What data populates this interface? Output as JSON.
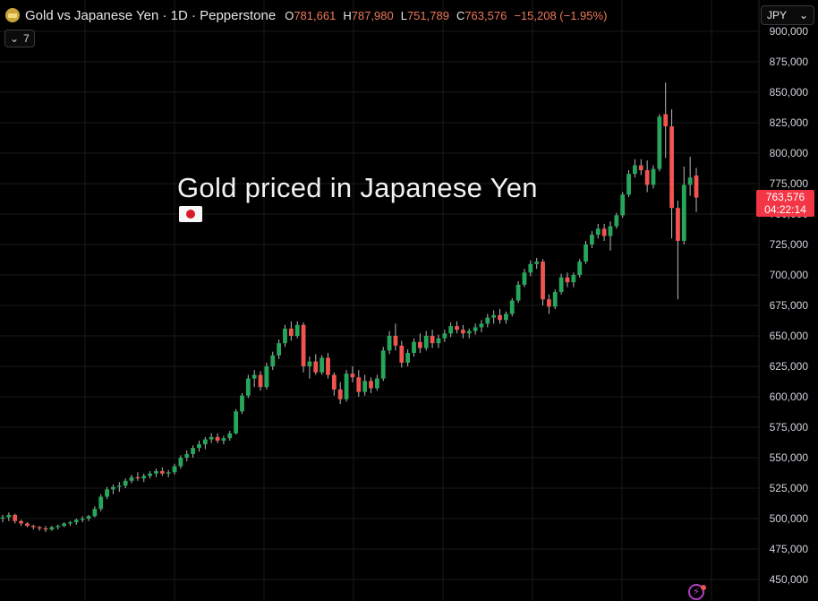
{
  "header": {
    "title": "Gold vs Japanese Yen · 1D · Pepperstone",
    "open_label": "O",
    "open": "781,661",
    "high_label": "H",
    "high": "787,980",
    "low_label": "L",
    "low": "751,789",
    "close_label": "C",
    "close": "763,576",
    "change": "−15,208 (−1.95%)"
  },
  "indicator_toggle": {
    "count": "7"
  },
  "currency_select": {
    "value": "JPY"
  },
  "annotation": {
    "text": "Gold priced in Japanese Yen",
    "flag": "japan-flag"
  },
  "price_tag": {
    "price": "763,576",
    "countdown": "04:22:14"
  },
  "colors": {
    "up": "#26a65b",
    "down": "#f0544f",
    "background": "#000000",
    "grid": "#1a1a1a",
    "tag": "#f23645"
  },
  "chart_data": {
    "type": "candlestick",
    "title": "",
    "xlabel": "",
    "ylabel": "",
    "ylim": [
      445000,
      905000
    ],
    "y_ticks": [
      "450,000",
      "475,000",
      "500,000",
      "525,000",
      "550,000",
      "575,000",
      "600,000",
      "625,000",
      "650,000",
      "675,000",
      "700,000",
      "725,000",
      "750,000",
      "775,000",
      "800,000",
      "825,000",
      "850,000",
      "875,000",
      "900,000"
    ],
    "y_tick_values": [
      450000,
      475000,
      500000,
      525000,
      550000,
      575000,
      600000,
      625000,
      650000,
      675000,
      700000,
      725000,
      750000,
      775000,
      800000,
      825000,
      850000,
      875000,
      900000
    ],
    "grid": true,
    "candles": [
      [
        500000,
        503000,
        497000,
        501000
      ],
      [
        501000,
        505000,
        498000,
        503000
      ],
      [
        503000,
        504000,
        496000,
        498000
      ],
      [
        498000,
        499000,
        494000,
        496000
      ],
      [
        496000,
        497000,
        493000,
        494000
      ],
      [
        494000,
        495000,
        491000,
        493000
      ],
      [
        493000,
        494000,
        490000,
        492000
      ],
      [
        492000,
        494000,
        489000,
        491000
      ],
      [
        491000,
        494000,
        490000,
        493000
      ],
      [
        493000,
        495000,
        491000,
        494000
      ],
      [
        494000,
        497000,
        493000,
        496000
      ],
      [
        496000,
        498000,
        494000,
        497000
      ],
      [
        497000,
        500000,
        495000,
        499000
      ],
      [
        499000,
        502000,
        497000,
        500000
      ],
      [
        500000,
        503000,
        498000,
        502000
      ],
      [
        502000,
        510000,
        501000,
        508000
      ],
      [
        508000,
        520000,
        506000,
        518000
      ],
      [
        518000,
        526000,
        516000,
        524000
      ],
      [
        524000,
        528000,
        520000,
        526000
      ],
      [
        526000,
        530000,
        522000,
        527000
      ],
      [
        527000,
        533000,
        525000,
        531000
      ],
      [
        531000,
        536000,
        529000,
        534000
      ],
      [
        534000,
        538000,
        531000,
        533000
      ],
      [
        533000,
        537000,
        530000,
        535000
      ],
      [
        535000,
        539000,
        533000,
        537000
      ],
      [
        537000,
        541000,
        534000,
        539000
      ],
      [
        539000,
        542000,
        535000,
        537000
      ],
      [
        537000,
        540000,
        534000,
        538000
      ],
      [
        538000,
        545000,
        536000,
        543000
      ],
      [
        543000,
        552000,
        541000,
        550000
      ],
      [
        550000,
        556000,
        547000,
        553000
      ],
      [
        553000,
        560000,
        550000,
        558000
      ],
      [
        558000,
        564000,
        555000,
        561000
      ],
      [
        561000,
        567000,
        557000,
        565000
      ],
      [
        565000,
        570000,
        562000,
        567000
      ],
      [
        567000,
        570000,
        562000,
        564000
      ],
      [
        564000,
        568000,
        561000,
        566000
      ],
      [
        566000,
        572000,
        564000,
        570000
      ],
      [
        570000,
        590000,
        569000,
        588000
      ],
      [
        588000,
        603000,
        586000,
        601000
      ],
      [
        601000,
        618000,
        599000,
        615000
      ],
      [
        615000,
        622000,
        608000,
        618000
      ],
      [
        618000,
        621000,
        605000,
        608000
      ],
      [
        608000,
        628000,
        606000,
        625000
      ],
      [
        625000,
        637000,
        622000,
        634000
      ],
      [
        634000,
        647000,
        631000,
        644000
      ],
      [
        644000,
        659000,
        641000,
        656000
      ],
      [
        656000,
        662000,
        646000,
        650000
      ],
      [
        650000,
        662000,
        648000,
        659000
      ],
      [
        659000,
        661000,
        620000,
        625000
      ],
      [
        625000,
        633000,
        615000,
        629000
      ],
      [
        629000,
        635000,
        618000,
        620000
      ],
      [
        620000,
        634000,
        618000,
        632000
      ],
      [
        632000,
        636000,
        615000,
        618000
      ],
      [
        618000,
        620000,
        601000,
        606000
      ],
      [
        606000,
        612000,
        594000,
        598000
      ],
      [
        598000,
        622000,
        596000,
        619000
      ],
      [
        619000,
        625000,
        612000,
        616000
      ],
      [
        616000,
        622000,
        600000,
        604000
      ],
      [
        604000,
        618000,
        601000,
        613000
      ],
      [
        613000,
        616000,
        603000,
        607000
      ],
      [
        607000,
        618000,
        605000,
        615000
      ],
      [
        615000,
        641000,
        613000,
        638000
      ],
      [
        638000,
        654000,
        635000,
        650000
      ],
      [
        650000,
        660000,
        638000,
        642000
      ],
      [
        642000,
        646000,
        624000,
        628000
      ],
      [
        628000,
        639000,
        625000,
        636000
      ],
      [
        636000,
        648000,
        633000,
        645000
      ],
      [
        645000,
        652000,
        636000,
        640000
      ],
      [
        640000,
        654000,
        638000,
        650000
      ],
      [
        650000,
        655000,
        640000,
        644000
      ],
      [
        644000,
        651000,
        640000,
        648000
      ],
      [
        648000,
        655000,
        645000,
        652000
      ],
      [
        652000,
        661000,
        649000,
        658000
      ],
      [
        658000,
        662000,
        652000,
        655000
      ],
      [
        655000,
        659000,
        648000,
        652000
      ],
      [
        652000,
        656000,
        648000,
        654000
      ],
      [
        654000,
        660000,
        651000,
        657000
      ],
      [
        657000,
        663000,
        653000,
        660000
      ],
      [
        660000,
        668000,
        657000,
        665000
      ],
      [
        665000,
        671000,
        660000,
        667000
      ],
      [
        667000,
        672000,
        660000,
        663000
      ],
      [
        663000,
        670000,
        660000,
        668000
      ],
      [
        668000,
        681000,
        666000,
        679000
      ],
      [
        679000,
        695000,
        677000,
        692000
      ],
      [
        692000,
        705000,
        690000,
        702000
      ],
      [
        702000,
        712000,
        699000,
        709000
      ],
      [
        709000,
        714000,
        705000,
        711000
      ],
      [
        711000,
        713000,
        675000,
        680000
      ],
      [
        680000,
        684000,
        668000,
        674000
      ],
      [
        674000,
        688000,
        672000,
        686000
      ],
      [
        686000,
        701000,
        684000,
        698000
      ],
      [
        698000,
        702000,
        690000,
        694000
      ],
      [
        694000,
        702000,
        690000,
        700000
      ],
      [
        700000,
        713000,
        698000,
        711000
      ],
      [
        711000,
        728000,
        709000,
        725000
      ],
      [
        725000,
        736000,
        722000,
        733000
      ],
      [
        733000,
        742000,
        730000,
        738000
      ],
      [
        738000,
        742000,
        728000,
        732000
      ],
      [
        732000,
        744000,
        720000,
        740000
      ],
      [
        740000,
        751000,
        738000,
        749000
      ],
      [
        749000,
        768000,
        747000,
        766000
      ],
      [
        766000,
        786000,
        764000,
        783000
      ],
      [
        783000,
        795000,
        780000,
        790000
      ],
      [
        790000,
        795000,
        782000,
        786000
      ],
      [
        786000,
        794000,
        768000,
        774000
      ],
      [
        774000,
        790000,
        771000,
        787000
      ],
      [
        787000,
        832000,
        785000,
        830000
      ],
      [
        832000,
        858000,
        796000,
        822000
      ],
      [
        822000,
        836000,
        730000,
        755000
      ],
      [
        755000,
        761000,
        680000,
        728000
      ],
      [
        728000,
        789000,
        725000,
        774000
      ],
      [
        774000,
        797000,
        765000,
        780000
      ],
      [
        781661,
        787980,
        751789,
        763576
      ]
    ]
  }
}
